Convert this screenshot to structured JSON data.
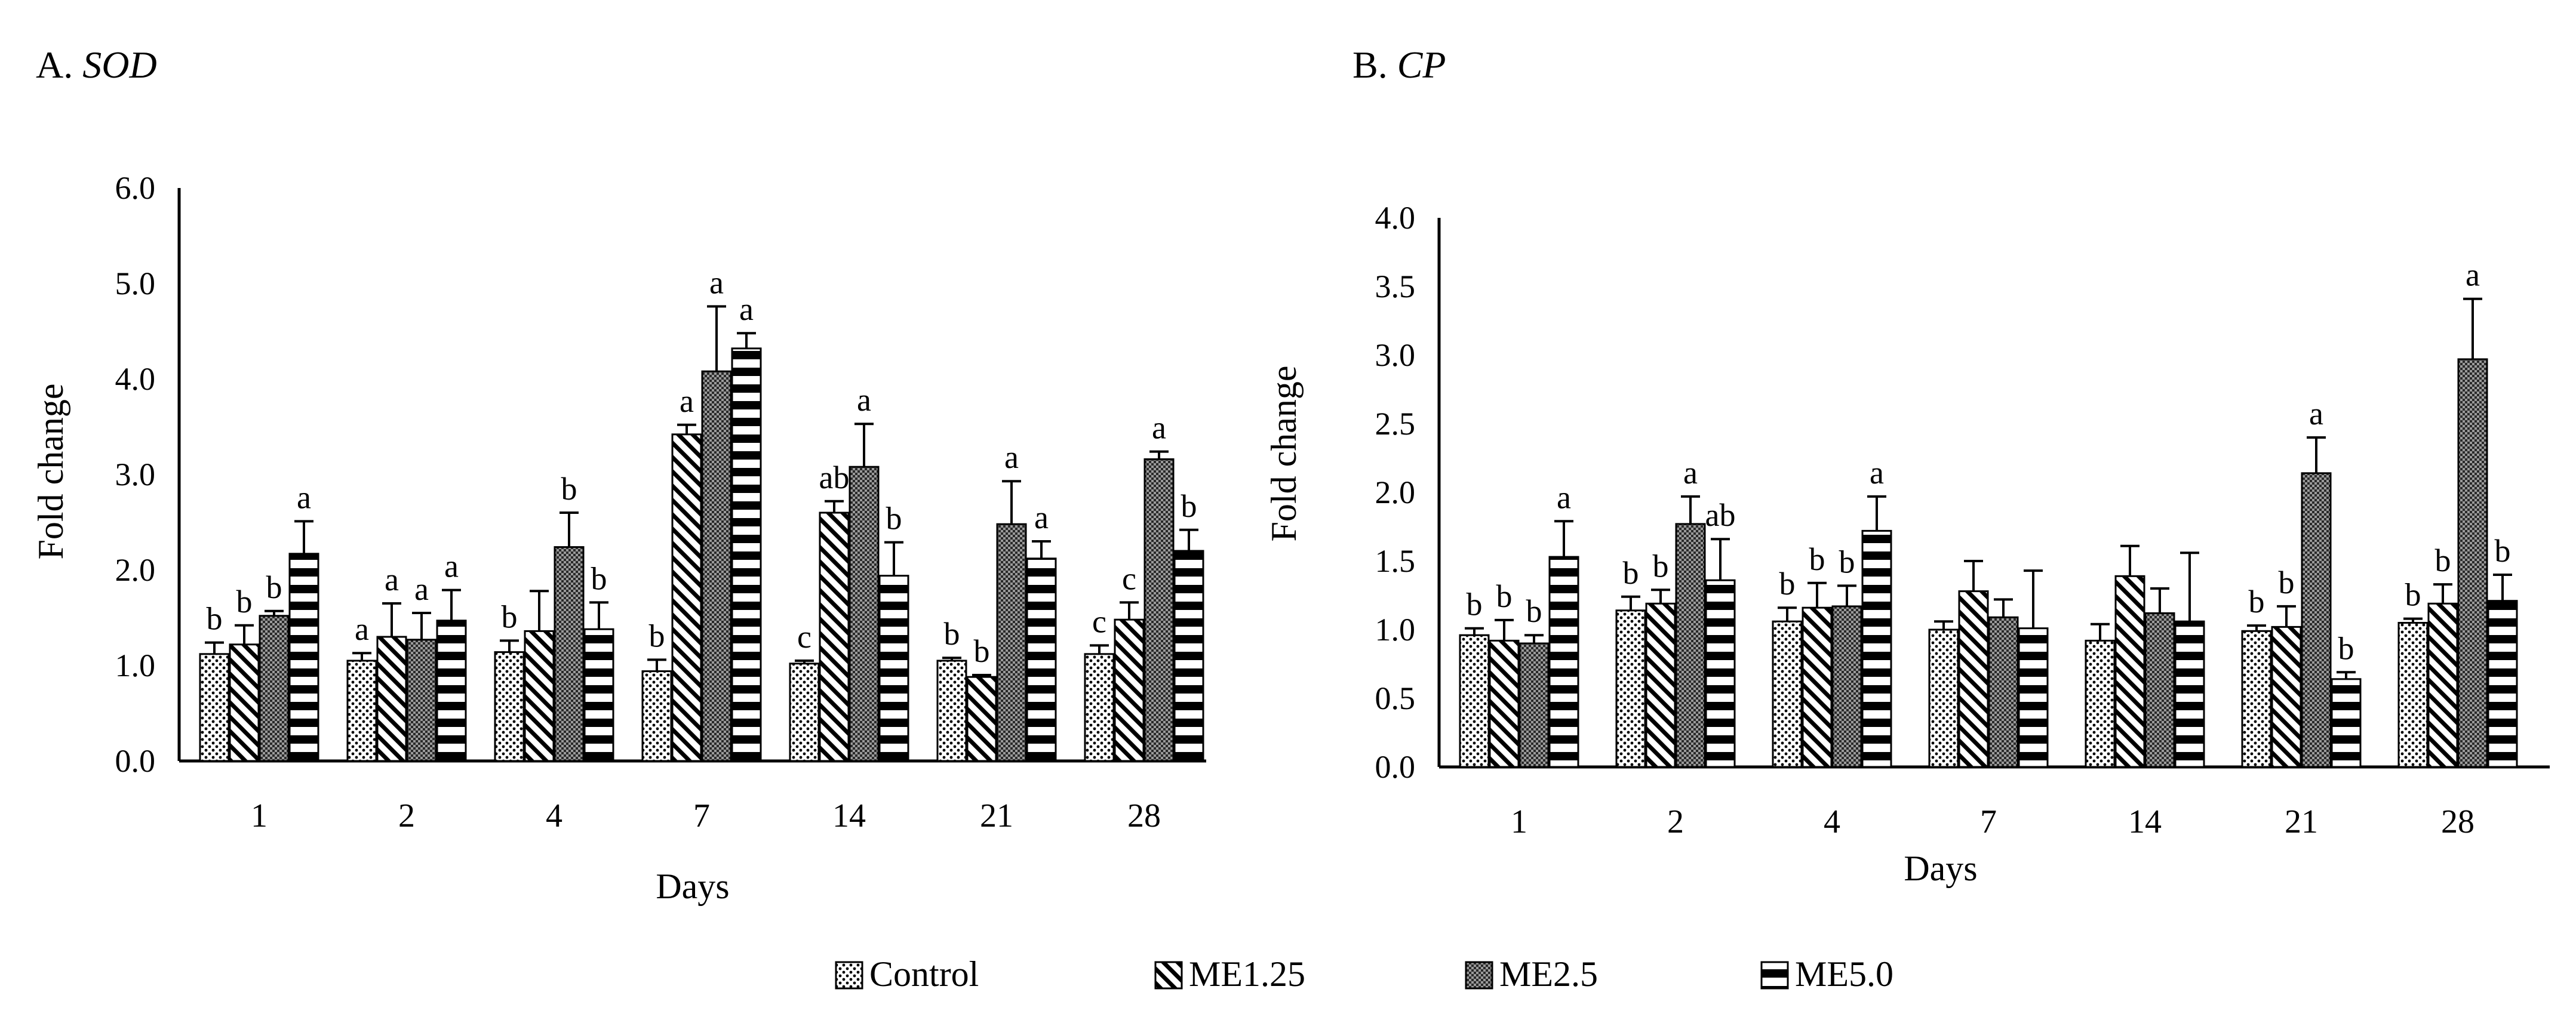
{
  "legend": [
    {
      "name": "Control",
      "pattern": "dots"
    },
    {
      "name": "ME1.25",
      "pattern": "diag"
    },
    {
      "name": "ME2.5",
      "pattern": "check"
    },
    {
      "name": "ME5.0",
      "pattern": "hstripe"
    }
  ],
  "chart_data": [
    {
      "type": "bar",
      "panel_label": "A.",
      "title": "SOD",
      "xlabel": "Days",
      "ylabel": "Fold change",
      "ylim": [
        0,
        6
      ],
      "yticks": [
        "0.0",
        "1.0",
        "2.0",
        "3.0",
        "4.0",
        "5.0",
        "6.0"
      ],
      "categories": [
        "1",
        "2",
        "4",
        "7",
        "14",
        "21",
        "28"
      ],
      "series": [
        {
          "name": "Control",
          "values": [
            1.12,
            1.05,
            1.14,
            0.94,
            1.02,
            1.05,
            1.12
          ],
          "errors": [
            0.12,
            0.08,
            0.12,
            0.12,
            0.03,
            0.03,
            0.09
          ],
          "letters": [
            "b",
            "a",
            "b",
            "b",
            "c",
            "b",
            "c"
          ]
        },
        {
          "name": "ME1.25",
          "values": [
            1.22,
            1.3,
            1.36,
            3.42,
            2.6,
            0.88,
            1.48
          ],
          "errors": [
            0.2,
            0.35,
            0.42,
            0.1,
            0.12,
            0.02,
            0.18
          ],
          "letters": [
            "b",
            "a",
            "",
            "a",
            "ab",
            "b",
            "c"
          ]
        },
        {
          "name": "ME2.5",
          "values": [
            1.52,
            1.27,
            2.24,
            4.08,
            3.08,
            2.48,
            3.16
          ],
          "errors": [
            0.05,
            0.28,
            0.36,
            0.68,
            0.45,
            0.45,
            0.08
          ],
          "letters": [
            "b",
            "a",
            "b",
            "a",
            "a",
            "a",
            "a"
          ]
        },
        {
          "name": "ME5.0",
          "values": [
            2.17,
            1.47,
            1.38,
            4.32,
            1.94,
            2.12,
            2.2
          ],
          "errors": [
            0.34,
            0.32,
            0.28,
            0.16,
            0.35,
            0.18,
            0.22
          ],
          "letters": [
            "a",
            "a",
            "b",
            "a",
            "b",
            "a",
            "b"
          ]
        }
      ]
    },
    {
      "type": "bar",
      "panel_label": "B.",
      "title": "CP",
      "xlabel": "Days",
      "ylabel": "Fold change",
      "ylim": [
        0,
        4
      ],
      "yticks": [
        "0.0",
        "0.5",
        "1.0",
        "1.5",
        "2.0",
        "2.5",
        "3.0",
        "3.5",
        "4.0"
      ],
      "categories": [
        "1",
        "2",
        "4",
        "7",
        "14",
        "21",
        "28"
      ],
      "series": [
        {
          "name": "Control",
          "values": [
            0.96,
            1.14,
            1.06,
            1.0,
            0.92,
            0.99,
            1.05
          ],
          "errors": [
            0.05,
            0.1,
            0.1,
            0.06,
            0.12,
            0.04,
            0.03
          ],
          "letters": [
            "b",
            "b",
            "b",
            "",
            "",
            "b",
            "b"
          ]
        },
        {
          "name": "ME1.25",
          "values": [
            0.92,
            1.19,
            1.16,
            1.28,
            1.39,
            1.02,
            1.19
          ],
          "errors": [
            0.15,
            0.1,
            0.18,
            0.22,
            0.22,
            0.15,
            0.14
          ],
          "letters": [
            "b",
            "b",
            "b",
            "",
            "",
            "b",
            "b"
          ]
        },
        {
          "name": "ME2.5",
          "values": [
            0.9,
            1.77,
            1.17,
            1.09,
            1.12,
            2.14,
            2.97
          ],
          "errors": [
            0.06,
            0.2,
            0.15,
            0.13,
            0.18,
            0.26,
            0.44
          ],
          "letters": [
            "b",
            "a",
            "b",
            "",
            "",
            "a",
            "a"
          ]
        },
        {
          "name": "ME5.0",
          "values": [
            1.53,
            1.36,
            1.72,
            1.01,
            1.06,
            0.64,
            1.21
          ],
          "errors": [
            0.26,
            0.3,
            0.25,
            0.42,
            0.5,
            0.05,
            0.19
          ],
          "letters": [
            "a",
            "ab",
            "a",
            "",
            "",
            "b",
            "b"
          ]
        }
      ]
    }
  ]
}
